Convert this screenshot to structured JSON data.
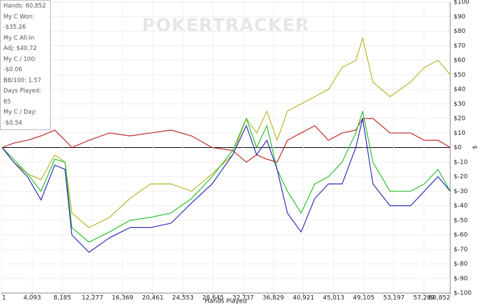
{
  "chart_data": {
    "type": "line",
    "watermark": "POKERTRACKER",
    "x_label": "Hands Played",
    "y_label": "$",
    "stats": [
      "Hands: 60,852",
      "My C Won: -$35.26",
      "My C All-In Adj: $40.72",
      "My C / 100: -$0.06",
      "BB/100: 1.57",
      "Days Played: 65",
      "My C / Day: -$0.54"
    ],
    "xlim": [
      1,
      60852
    ],
    "ylim": [
      -100,
      100
    ],
    "grid": true,
    "y_axis_side": "right",
    "xticks": [
      1,
      {
        "value": 4093,
        "label": "4,093"
      },
      {
        "value": 8185,
        "label": "8,185"
      },
      {
        "value": 12277,
        "label": "12,277"
      },
      {
        "value": 16369,
        "label": "16,369"
      },
      {
        "value": 20461,
        "label": "20,461"
      },
      {
        "value": 24553,
        "label": "24,553"
      },
      {
        "value": 28645,
        "label": "28,645"
      },
      {
        "value": 32737,
        "label": "32,737"
      },
      {
        "value": 36829,
        "label": "36,829"
      },
      {
        "value": 40921,
        "label": "40,921"
      },
      {
        "value": 45013,
        "label": "45,013"
      },
      {
        "value": 49105,
        "label": "49,105"
      },
      {
        "value": 53197,
        "label": "53,197"
      },
      {
        "value": 57289,
        "label": "57,289"
      },
      {
        "value": 60852,
        "label": "60,852"
      }
    ],
    "yticks": [
      {
        "value": 100,
        "label": "$100"
      },
      {
        "value": 90,
        "label": "$90"
      },
      {
        "value": 80,
        "label": "$80"
      },
      {
        "value": 70,
        "label": "$70"
      },
      {
        "value": 60,
        "label": "$60"
      },
      {
        "value": 50,
        "label": "$50"
      },
      {
        "value": 40,
        "label": "$40"
      },
      {
        "value": 30,
        "label": "$30"
      },
      {
        "value": 20,
        "label": "$20"
      },
      {
        "value": 10,
        "label": "$10"
      },
      {
        "value": 0,
        "label": "$0"
      },
      {
        "value": -10,
        "label": "$-10"
      },
      {
        "value": -20,
        "label": "$-20"
      },
      {
        "value": -30,
        "label": "$-30"
      },
      {
        "value": -40,
        "label": "$-40"
      },
      {
        "value": -50,
        "label": "$-50"
      },
      {
        "value": -60,
        "label": "$-60"
      },
      {
        "value": -70,
        "label": "$-70"
      },
      {
        "value": -80,
        "label": "$-80"
      },
      {
        "value": -90,
        "label": "$-90"
      },
      {
        "value": -100,
        "label": "$-100"
      }
    ],
    "x": [
      1,
      1580,
      3437,
      5295,
      7154,
      8547,
      9476,
      11800,
      14585,
      17372,
      20159,
      22946,
      25733,
      28520,
      31307,
      33165,
      34559,
      35952,
      37346,
      38739,
      40597,
      42455,
      44313,
      46171,
      48029,
      48958,
      50352,
      52674,
      55461,
      57319,
      59177,
      60852
    ],
    "series": [
      {
        "color": "#b8b42c",
        "values": [
          0,
          -10,
          -18,
          -22,
          -5,
          -10,
          -45,
          -55,
          -48,
          -35,
          -25,
          -25,
          -30,
          -18,
          -5,
          20,
          10,
          25,
          5,
          25,
          30,
          35,
          40,
          55,
          60,
          75,
          45,
          35,
          45,
          55,
          60,
          50
        ]
      },
      {
        "color": "#c02424",
        "values": [
          0,
          3,
          5,
          8,
          12,
          5,
          0,
          5,
          10,
          8,
          10,
          12,
          8,
          0,
          -2,
          -10,
          -5,
          -8,
          -10,
          5,
          10,
          15,
          5,
          10,
          12,
          20,
          20,
          10,
          10,
          5,
          5,
          0
        ]
      },
      {
        "color": "#2cbf2c",
        "values": [
          0,
          -8,
          -18,
          -30,
          -8,
          -10,
          -55,
          -65,
          -58,
          -50,
          -48,
          -45,
          -35,
          -20,
          -2,
          20,
          0,
          15,
          -15,
          -30,
          -45,
          -25,
          -20,
          -10,
          10,
          25,
          -10,
          -30,
          -30,
          -25,
          -15,
          -30
        ]
      },
      {
        "color": "#2a2ab8",
        "values": [
          0,
          -10,
          -20,
          -36,
          -12,
          -15,
          -60,
          -72,
          -62,
          -55,
          -55,
          -52,
          -38,
          -25,
          -5,
          15,
          -5,
          5,
          -15,
          -45,
          -58,
          -35,
          -25,
          -25,
          0,
          20,
          -25,
          -40,
          -40,
          -30,
          -20,
          -30
        ]
      }
    ]
  }
}
